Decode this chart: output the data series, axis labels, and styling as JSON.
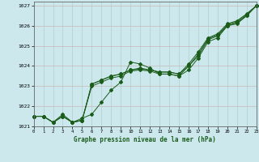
{
  "title": "Graphe pression niveau de la mer (hPa)",
  "bg_color": "#cce8ed",
  "line_color": "#1a5c1a",
  "grid_color_v": "#b0cdd0",
  "grid_color_h": "#c8b8b8",
  "xlim": [
    0,
    23
  ],
  "ylim": [
    1021.0,
    1027.2
  ],
  "xtick_labels": [
    "0",
    "1",
    "2",
    "3",
    "4",
    "5",
    "6",
    "7",
    "8",
    "9",
    "10",
    "11",
    "12",
    "13",
    "14",
    "15",
    "16",
    "17",
    "18",
    "19",
    "20",
    "21",
    "22",
    "23"
  ],
  "ytick_vals": [
    1021,
    1022,
    1023,
    1024,
    1025,
    1026,
    1027
  ],
  "line_wavy": [
    1021.5,
    1021.5,
    1021.2,
    1021.6,
    1021.2,
    1021.4,
    1021.6,
    1022.2,
    1022.8,
    1023.2,
    1024.2,
    1024.1,
    1023.9,
    1023.6,
    1023.6,
    1023.5,
    1023.8,
    1024.4,
    1025.2,
    1025.4,
    1026.0,
    1026.1,
    1026.5,
    1027.0
  ],
  "line_b": [
    1021.5,
    1021.5,
    1021.2,
    1021.5,
    1021.2,
    1021.3,
    1023.1,
    1023.3,
    1023.5,
    1023.6,
    1023.8,
    1023.9,
    1023.8,
    1023.7,
    1023.7,
    1023.6,
    1024.0,
    1024.6,
    1025.35,
    1025.55,
    1026.05,
    1026.2,
    1026.55,
    1027.0
  ],
  "line_c": [
    1021.5,
    1021.5,
    1021.2,
    1021.5,
    1021.2,
    1021.3,
    1023.1,
    1023.3,
    1023.5,
    1023.6,
    1023.8,
    1023.85,
    1023.8,
    1023.7,
    1023.7,
    1023.6,
    1024.1,
    1024.7,
    1025.4,
    1025.6,
    1026.1,
    1026.25,
    1026.6,
    1027.0
  ],
  "line_d": [
    1021.5,
    1021.5,
    1021.2,
    1021.5,
    1021.2,
    1021.3,
    1023.0,
    1023.2,
    1023.4,
    1023.5,
    1023.75,
    1023.8,
    1023.75,
    1023.6,
    1023.6,
    1023.5,
    1024.0,
    1024.5,
    1025.3,
    1025.5,
    1026.0,
    1026.15,
    1026.5,
    1027.0
  ]
}
